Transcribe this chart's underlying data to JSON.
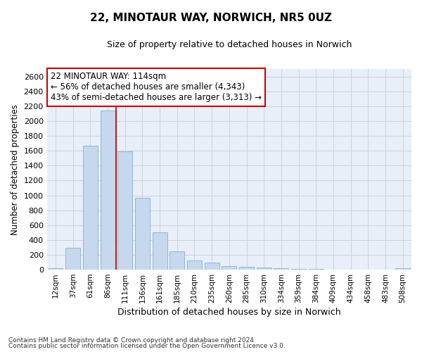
{
  "title1": "22, MINOTAUR WAY, NORWICH, NR5 0UZ",
  "title2": "Size of property relative to detached houses in Norwich",
  "xlabel": "Distribution of detached houses by size in Norwich",
  "ylabel": "Number of detached properties",
  "categories": [
    "12sqm",
    "37sqm",
    "61sqm",
    "86sqm",
    "111sqm",
    "136sqm",
    "161sqm",
    "185sqm",
    "210sqm",
    "235sqm",
    "260sqm",
    "285sqm",
    "310sqm",
    "334sqm",
    "359sqm",
    "384sqm",
    "409sqm",
    "434sqm",
    "458sqm",
    "483sqm",
    "508sqm"
  ],
  "values": [
    20,
    295,
    1670,
    2140,
    1590,
    970,
    500,
    245,
    120,
    95,
    50,
    35,
    25,
    20,
    10,
    10,
    5,
    5,
    5,
    5,
    15
  ],
  "bar_color": "#c5d8ee",
  "bar_edge_color": "#85afd4",
  "vline_index": 4,
  "annotation_text_line1": "22 MINOTAUR WAY: 114sqm",
  "annotation_text_line2": "← 56% of detached houses are smaller (4,343)",
  "annotation_text_line3": "43% of semi-detached houses are larger (3,313) →",
  "annotation_box_facecolor": "#ffffff",
  "annotation_box_edgecolor": "#cc0000",
  "vline_color": "#cc0000",
  "bg_axes": "#e8eff8",
  "bg_fig": "#ffffff",
  "grid_color": "#c8d4e0",
  "ylim_max": 2700,
  "yticks": [
    0,
    200,
    400,
    600,
    800,
    1000,
    1200,
    1400,
    1600,
    1800,
    2000,
    2200,
    2400,
    2600
  ],
  "footnote1": "Contains HM Land Registry data © Crown copyright and database right 2024.",
  "footnote2": "Contains public sector information licensed under the Open Government Licence v3.0."
}
